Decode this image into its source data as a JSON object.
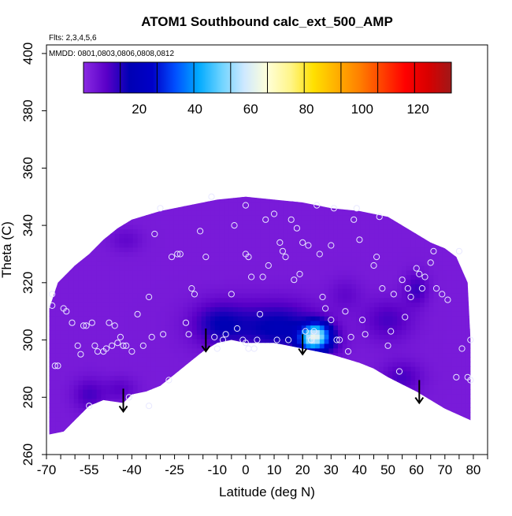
{
  "chart_data": {
    "type": "heatmap",
    "title": "ATOM1 Southbound calc_ext_500_AMP",
    "subtitle_flights": "Flts: 2,3,4,5,6",
    "subtitle_dates": "MMDD: 0801,0803,0806,0808,0812",
    "xlabel": "Latitude (deg N)",
    "ylabel": "Theta (C)",
    "xlim": [
      -70,
      85
    ],
    "ylim": [
      260,
      403
    ],
    "x_ticks": [
      -70,
      -65,
      -60,
      -55,
      -50,
      -45,
      -40,
      -35,
      -30,
      -25,
      -20,
      -15,
      -10,
      -5,
      0,
      5,
      10,
      15,
      20,
      25,
      30,
      35,
      40,
      45,
      50,
      55,
      60,
      65,
      70,
      75,
      80,
      85
    ],
    "x_tick_labels": [
      "-70",
      "-55",
      "-40",
      "-25",
      "-10",
      "0",
      "10",
      "20",
      "30",
      "40",
      "50",
      "60",
      "70",
      "80"
    ],
    "x_tick_label_values": [
      -70,
      -55,
      -40,
      -25,
      -10,
      0,
      10,
      20,
      30,
      40,
      50,
      60,
      70,
      80
    ],
    "y_tick_labels": [
      "260",
      "280",
      "300",
      "320",
      "340",
      "360",
      "380",
      "400"
    ],
    "y_tick_values": [
      260,
      280,
      300,
      320,
      340,
      360,
      380,
      400
    ],
    "colorbar": {
      "range": [
        0,
        132
      ],
      "tick_labels": [
        "20",
        "40",
        "60",
        "80",
        "100",
        "120"
      ],
      "tick_values": [
        20,
        40,
        60,
        80,
        100,
        120
      ],
      "colors": [
        "#8a2be2",
        "#5a00c8",
        "#0000b4",
        "#0000c8",
        "#0050ff",
        "#00aaff",
        "#6dd3ff",
        "#cfe9ff",
        "#ffffd8",
        "#fff58a",
        "#ffe000",
        "#ffb000",
        "#ff8000",
        "#ff4000",
        "#ff0000",
        "#d80000",
        "#a01818"
      ],
      "segments": 10
    },
    "upper_boundary": [
      [
        -69,
        311
      ],
      [
        -66,
        320
      ],
      [
        -60,
        326
      ],
      [
        -55,
        330
      ],
      [
        -50,
        335
      ],
      [
        -45,
        339
      ],
      [
        -40,
        342
      ],
      [
        -30,
        345
      ],
      [
        -20,
        347
      ],
      [
        -10,
        349
      ],
      [
        0,
        350
      ],
      [
        10,
        349
      ],
      [
        20,
        348
      ],
      [
        30,
        346
      ],
      [
        40,
        345
      ],
      [
        50,
        343
      ],
      [
        55,
        340
      ],
      [
        60,
        337
      ],
      [
        65,
        334
      ],
      [
        70,
        332
      ],
      [
        74,
        329
      ],
      [
        78,
        320
      ],
      [
        79,
        300
      ],
      [
        79,
        272
      ]
    ],
    "lower_boundary": [
      [
        79,
        272
      ],
      [
        70,
        276
      ],
      [
        60,
        282
      ],
      [
        50,
        287
      ],
      [
        45,
        290
      ],
      [
        40,
        292
      ],
      [
        30,
        295
      ],
      [
        20,
        297
      ],
      [
        10,
        299
      ],
      [
        0,
        299
      ],
      [
        -5,
        300
      ],
      [
        -10,
        299
      ],
      [
        -15,
        296
      ],
      [
        -20,
        292
      ],
      [
        -25,
        288
      ],
      [
        -30,
        284
      ],
      [
        -35,
        282
      ],
      [
        -40,
        281
      ],
      [
        -43,
        278
      ],
      [
        -50,
        279
      ],
      [
        -55,
        277
      ],
      [
        -60,
        272
      ],
      [
        -64,
        268
      ],
      [
        -69,
        267
      ]
    ],
    "background_value": 3,
    "features": [
      {
        "lat": 2,
        "theta": 305,
        "value": 12,
        "sx": 12,
        "sy": 6
      },
      {
        "lat": -10,
        "theta": 306,
        "value": 11,
        "sx": 6,
        "sy": 5
      },
      {
        "lat": 15,
        "theta": 304,
        "value": 12,
        "sx": 8,
        "sy": 6
      },
      {
        "lat": 25,
        "theta": 302,
        "value": 36,
        "sx": 3,
        "sy": 3
      },
      {
        "lat": 22,
        "theta": 300,
        "value": 26,
        "sx": 3,
        "sy": 3
      },
      {
        "lat": 28,
        "theta": 300,
        "value": 15,
        "sx": 4,
        "sy": 4
      },
      {
        "lat": 50,
        "theta": 307,
        "value": 10,
        "sx": 6,
        "sy": 5
      },
      {
        "lat": 60,
        "theta": 318,
        "value": 11,
        "sx": 3,
        "sy": 4
      },
      {
        "lat": -55,
        "theta": 281,
        "value": 10,
        "sx": 4,
        "sy": 4
      },
      {
        "lat": -44,
        "theta": 283,
        "value": 8,
        "sx": 4,
        "sy": 3
      },
      {
        "lat": 55,
        "theta": 287,
        "value": 10,
        "sx": 5,
        "sy": 4
      },
      {
        "lat": -42,
        "theta": 335,
        "value": 7,
        "sx": 4,
        "sy": 3
      },
      {
        "lat": 35,
        "theta": 316,
        "value": 7,
        "sx": 4,
        "sy": 4
      }
    ],
    "points": [
      [
        -68,
        316
      ],
      [
        -68,
        312
      ],
      [
        -67,
        291
      ],
      [
        -66,
        291
      ],
      [
        -64,
        311
      ],
      [
        -63,
        310
      ],
      [
        -61,
        306
      ],
      [
        -59,
        298
      ],
      [
        -58,
        295
      ],
      [
        -57,
        305
      ],
      [
        -56,
        305
      ],
      [
        -55,
        277
      ],
      [
        -54,
        306
      ],
      [
        -53,
        298
      ],
      [
        -52,
        296
      ],
      [
        -50,
        296
      ],
      [
        -49,
        297
      ],
      [
        -48,
        306
      ],
      [
        -47,
        298
      ],
      [
        -46,
        305
      ],
      [
        -45,
        299
      ],
      [
        -44,
        301
      ],
      [
        -43,
        298
      ],
      [
        -42,
        298
      ],
      [
        -41,
        280
      ],
      [
        -40,
        296
      ],
      [
        -38,
        309
      ],
      [
        -36,
        298
      ],
      [
        -34,
        277
      ],
      [
        -34,
        315
      ],
      [
        -33,
        301
      ],
      [
        -32,
        337
      ],
      [
        -30,
        346
      ],
      [
        -29,
        302
      ],
      [
        -27,
        286
      ],
      [
        -26,
        329
      ],
      [
        -24,
        330
      ],
      [
        -23,
        330
      ],
      [
        -21,
        306
      ],
      [
        -20,
        302
      ],
      [
        -19,
        318
      ],
      [
        -18,
        316
      ],
      [
        -16,
        338
      ],
      [
        -14,
        329
      ],
      [
        -12,
        350
      ],
      [
        -11,
        301
      ],
      [
        -10,
        297
      ],
      [
        -8,
        300
      ],
      [
        -7,
        302
      ],
      [
        -5,
        316
      ],
      [
        -4,
        340
      ],
      [
        -3,
        304
      ],
      [
        -1,
        300
      ],
      [
        0,
        347
      ],
      [
        0,
        330
      ],
      [
        0,
        299
      ],
      [
        1,
        329
      ],
      [
        1,
        297
      ],
      [
        2,
        322
      ],
      [
        3,
        297
      ],
      [
        4,
        300
      ],
      [
        5,
        309
      ],
      [
        6,
        322
      ],
      [
        7,
        342
      ],
      [
        8,
        326
      ],
      [
        10,
        344
      ],
      [
        11,
        300
      ],
      [
        12,
        334
      ],
      [
        13,
        331
      ],
      [
        14,
        329
      ],
      [
        15,
        300
      ],
      [
        16,
        342
      ],
      [
        17,
        321
      ],
      [
        18,
        339
      ],
      [
        19,
        323
      ],
      [
        20,
        334
      ],
      [
        21,
        303
      ],
      [
        22,
        333
      ],
      [
        23,
        300
      ],
      [
        24,
        303
      ],
      [
        25,
        347
      ],
      [
        26,
        330
      ],
      [
        27,
        315
      ],
      [
        28,
        311
      ],
      [
        30,
        307
      ],
      [
        30,
        333
      ],
      [
        31,
        346
      ],
      [
        32,
        300
      ],
      [
        33,
        300
      ],
      [
        35,
        310
      ],
      [
        36,
        296
      ],
      [
        37,
        301
      ],
      [
        38,
        342
      ],
      [
        39,
        346
      ],
      [
        40,
        335
      ],
      [
        41,
        307
      ],
      [
        42,
        302
      ],
      [
        45,
        326
      ],
      [
        46,
        329
      ],
      [
        47,
        343
      ],
      [
        48,
        318
      ],
      [
        50,
        298
      ],
      [
        51,
        303
      ],
      [
        52,
        316
      ],
      [
        54,
        289
      ],
      [
        55,
        321
      ],
      [
        56,
        308
      ],
      [
        57,
        318
      ],
      [
        58,
        315
      ],
      [
        60,
        325
      ],
      [
        61,
        323
      ],
      [
        62,
        318
      ],
      [
        63,
        322
      ],
      [
        65,
        327
      ],
      [
        66,
        331
      ],
      [
        67,
        318
      ],
      [
        69,
        316
      ],
      [
        71,
        314
      ],
      [
        74,
        287
      ],
      [
        75,
        331
      ],
      [
        76,
        297
      ],
      [
        78,
        287
      ],
      [
        79,
        286
      ],
      [
        79,
        300
      ]
    ],
    "arrows": [
      {
        "lat": -43,
        "theta_start": 283,
        "theta_end": 275
      },
      {
        "lat": -14,
        "theta_start": 304,
        "theta_end": 296
      },
      {
        "lat": 20,
        "theta_start": 302,
        "theta_end": 295
      },
      {
        "lat": 61,
        "theta_start": 286,
        "theta_end": 278
      }
    ]
  }
}
